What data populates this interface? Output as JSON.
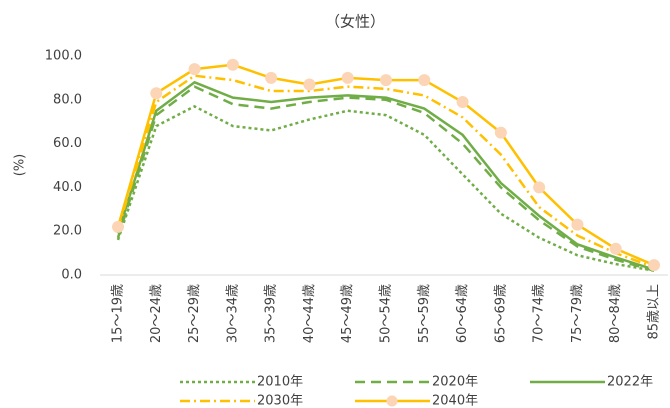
{
  "chart_data": {
    "type": "line",
    "title": "（女性）",
    "y_label": "(%)",
    "categories": [
      "15～19歳",
      "20～24歳",
      "25～29歳",
      "30～34歳",
      "35～39歳",
      "40～44歳",
      "45～49歳",
      "50～54歳",
      "55～59歳",
      "60～64歳",
      "65～69歳",
      "70～74歳",
      "75～79歳",
      "80～84歳",
      "85歳以上"
    ],
    "ylim": [
      0,
      100
    ],
    "yticks": [
      {
        "value": 0,
        "label": "0.0"
      },
      {
        "value": 20,
        "label": "20.0"
      },
      {
        "value": 40,
        "label": "40.0"
      },
      {
        "value": 60,
        "label": "60.0"
      },
      {
        "value": 80,
        "label": "80.0"
      },
      {
        "value": 100,
        "label": "100.0"
      }
    ],
    "series": [
      {
        "name": "2010年",
        "color": "#70ad47",
        "dash": "3,3",
        "values": [
          16,
          68,
          77,
          68,
          66,
          71,
          75,
          73,
          64,
          46,
          28,
          17,
          9,
          5,
          2
        ]
      },
      {
        "name": "2020年",
        "color": "#70ad47",
        "dash": "10,6",
        "values": [
          17,
          73,
          86,
          78,
          76,
          79,
          81,
          80,
          74,
          60,
          40,
          25,
          13,
          7,
          2
        ]
      },
      {
        "name": "2022年",
        "color": "#70ad47",
        "dash": "none",
        "values": [
          19,
          75,
          88,
          81,
          79,
          81,
          82,
          81,
          76,
          64,
          42,
          27,
          14,
          8,
          2.5
        ]
      },
      {
        "name": "2030年",
        "color": "#ffc000",
        "dash": "10,4,2,4",
        "values": [
          21,
          79,
          91,
          89,
          84,
          84,
          86,
          85,
          82,
          72,
          55,
          31,
          18,
          10,
          3.5
        ]
      },
      {
        "name": "2040年",
        "color": "#ffc000",
        "dash": "none",
        "marker": "#fbd5b5",
        "values": [
          22,
          83,
          94,
          96,
          90,
          87,
          90,
          89,
          89,
          79,
          65,
          40,
          23,
          12,
          4.5
        ]
      }
    ]
  }
}
